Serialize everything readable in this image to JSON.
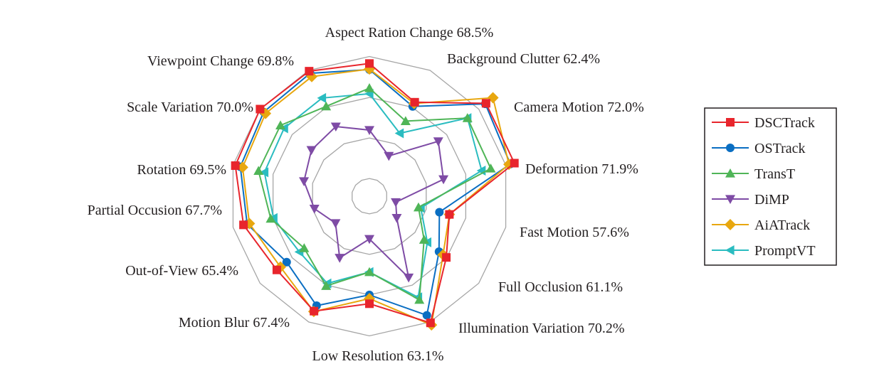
{
  "chart_data": {
    "type": "radar",
    "title": "",
    "axes": [
      {
        "name": "Aspect Ration Change",
        "value_label": "68.5%"
      },
      {
        "name": "Background Clutter",
        "value_label": "62.4%"
      },
      {
        "name": "Camera Motion",
        "value_label": "72.0%"
      },
      {
        "name": "Deformation",
        "value_label": "71.9%"
      },
      {
        "name": "Fast Motion",
        "value_label": "57.6%"
      },
      {
        "name": "Full Occlusion",
        "value_label": "61.1%"
      },
      {
        "name": "Illumination Variation",
        "value_label": "70.2%"
      },
      {
        "name": "Low Resolution",
        "value_label": "63.1%"
      },
      {
        "name": "Motion Blur",
        "value_label": "67.4%"
      },
      {
        "name": "Out-of-View",
        "value_label": "65.4%"
      },
      {
        "name": "Partial Occusion",
        "value_label": "67.7%"
      },
      {
        "name": "Rotation",
        "value_label": "69.5%"
      },
      {
        "name": "Scale Variation",
        "value_label": "70.0%"
      },
      {
        "name": "Viewpoint Change",
        "value_label": "69.8%"
      }
    ],
    "range": [
      40,
      70
    ],
    "grid_rings": [
      43.8,
      52.5,
      61.2,
      70
    ],
    "grid": true,
    "legend_position": "right",
    "series": [
      {
        "name": "DSCTrack",
        "color": "#E8252C",
        "marker": "square",
        "values": [
          68.5,
          62.4,
          72.0,
          71.9,
          57.6,
          61.1,
          70.2,
          63.1,
          67.4,
          65.4,
          67.7,
          69.5,
          70.0,
          69.8
        ]
      },
      {
        "name": "OSTrack",
        "color": "#0A6EC2",
        "marker": "circle",
        "values": [
          67.2,
          61.4,
          71.8,
          71.0,
          55.4,
          59.1,
          68.4,
          61.2,
          66.1,
          62.7,
          66.9,
          68.4,
          69.0,
          69.3
        ]
      },
      {
        "name": "TransT",
        "color": "#4FB557",
        "marker": "triangle-up",
        "values": [
          63.2,
          57.9,
          66.9,
          66.7,
          50.8,
          55.0,
          64.7,
          56.3,
          61.4,
          57.9,
          61.7,
          64.4,
          64.4,
          61.4
        ]
      },
      {
        "name": "DiMP",
        "color": "#7E4BA5",
        "marker": "triangle-down",
        "values": [
          54.2,
          49.6,
          58.9,
          56.3,
          45.8,
          47.5,
          59.4,
          49.2,
          54.7,
          49.3,
          52.1,
          54.4,
          55.9,
          56.6
        ]
      },
      {
        "name": "AiATrack",
        "color": "#E8A70F",
        "marker": "diamond",
        "values": [
          67.3,
          62.1,
          73.9,
          70.7,
          57.6,
          60.2,
          70.7,
          62.0,
          67.5,
          64.4,
          66.4,
          67.9,
          68.5,
          68.5
        ]
      },
      {
        "name": "PromptVT",
        "color": "#2ABCC0",
        "marker": "triangle-left",
        "values": [
          62.0,
          55.0,
          66.9,
          64.7,
          51.3,
          55.9,
          64.1,
          56.3,
          60.8,
          59.2,
          61.1,
          63.1,
          63.4,
          63.4
        ]
      }
    ]
  }
}
